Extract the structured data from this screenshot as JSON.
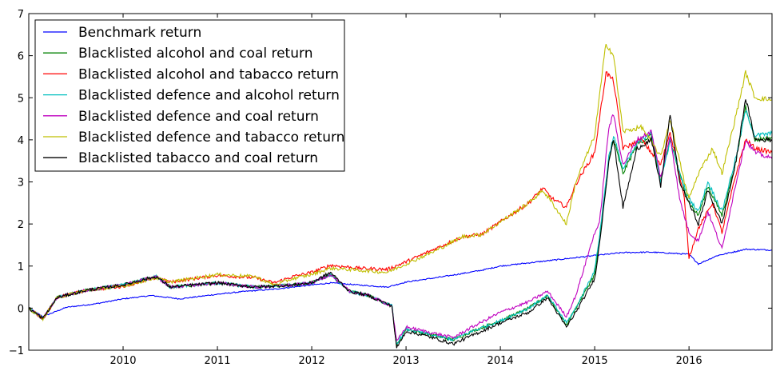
{
  "chart_data": {
    "type": "line",
    "title": "",
    "xlabel": "",
    "ylabel": "",
    "xlim": [
      2009.0,
      2016.88
    ],
    "ylim": [
      -1,
      7
    ],
    "xticks": [
      2010,
      2011,
      2012,
      2013,
      2014,
      2015,
      2016
    ],
    "yticks": [
      -1,
      0,
      1,
      2,
      3,
      4,
      5,
      6,
      7
    ],
    "grid": false,
    "legend_position": "top-left",
    "series": [
      {
        "name": "Benchmark return",
        "color": "#0000ff",
        "points": [
          [
            2009.0,
            0.0
          ],
          [
            2009.15,
            -0.2
          ],
          [
            2009.4,
            0.02
          ],
          [
            2009.7,
            0.1
          ],
          [
            2010.0,
            0.22
          ],
          [
            2010.3,
            0.3
          ],
          [
            2010.6,
            0.22
          ],
          [
            2011.0,
            0.33
          ],
          [
            2011.3,
            0.4
          ],
          [
            2011.6,
            0.45
          ],
          [
            2012.0,
            0.55
          ],
          [
            2012.2,
            0.6
          ],
          [
            2012.5,
            0.55
          ],
          [
            2012.8,
            0.5
          ],
          [
            2013.0,
            0.62
          ],
          [
            2013.4,
            0.75
          ],
          [
            2013.8,
            0.9
          ],
          [
            2014.0,
            1.0
          ],
          [
            2014.4,
            1.1
          ],
          [
            2014.8,
            1.2
          ],
          [
            2015.0,
            1.25
          ],
          [
            2015.3,
            1.32
          ],
          [
            2015.6,
            1.33
          ],
          [
            2015.85,
            1.3
          ],
          [
            2016.0,
            1.28
          ],
          [
            2016.1,
            1.05
          ],
          [
            2016.3,
            1.25
          ],
          [
            2016.6,
            1.4
          ],
          [
            2016.88,
            1.38
          ]
        ]
      },
      {
        "name": "Blacklisted alcohol and coal return",
        "color": "#008000",
        "points": [
          [
            2009.0,
            0.0
          ],
          [
            2009.15,
            -0.25
          ],
          [
            2009.3,
            0.25
          ],
          [
            2009.6,
            0.42
          ],
          [
            2010.0,
            0.55
          ],
          [
            2010.35,
            0.75
          ],
          [
            2010.5,
            0.5
          ],
          [
            2011.0,
            0.6
          ],
          [
            2011.4,
            0.5
          ],
          [
            2011.8,
            0.55
          ],
          [
            2012.0,
            0.6
          ],
          [
            2012.2,
            0.8
          ],
          [
            2012.4,
            0.4
          ],
          [
            2012.6,
            0.3
          ],
          [
            2012.85,
            0.05
          ],
          [
            2012.9,
            -0.9
          ],
          [
            2013.0,
            -0.5
          ],
          [
            2013.2,
            -0.6
          ],
          [
            2013.5,
            -0.75
          ],
          [
            2013.7,
            -0.55
          ],
          [
            2014.0,
            -0.3
          ],
          [
            2014.3,
            0.0
          ],
          [
            2014.5,
            0.3
          ],
          [
            2014.7,
            -0.4
          ],
          [
            2014.8,
            0.0
          ],
          [
            2015.0,
            0.8
          ],
          [
            2015.05,
            1.6
          ],
          [
            2015.15,
            3.5
          ],
          [
            2015.2,
            4.0
          ],
          [
            2015.3,
            3.2
          ],
          [
            2015.45,
            3.9
          ],
          [
            2015.6,
            4.1
          ],
          [
            2015.7,
            3.0
          ],
          [
            2015.8,
            4.0
          ],
          [
            2015.9,
            3.2
          ],
          [
            2016.0,
            2.5
          ],
          [
            2016.1,
            2.2
          ],
          [
            2016.2,
            2.9
          ],
          [
            2016.35,
            2.2
          ],
          [
            2016.5,
            3.5
          ],
          [
            2016.6,
            4.8
          ],
          [
            2016.7,
            4.0
          ],
          [
            2016.88,
            4.05
          ]
        ]
      },
      {
        "name": "Blacklisted alcohol and tabacco return",
        "color": "#ff0000",
        "points": [
          [
            2009.0,
            0.0
          ],
          [
            2009.15,
            -0.25
          ],
          [
            2009.3,
            0.25
          ],
          [
            2009.6,
            0.42
          ],
          [
            2010.0,
            0.52
          ],
          [
            2010.35,
            0.72
          ],
          [
            2010.5,
            0.62
          ],
          [
            2011.0,
            0.78
          ],
          [
            2011.4,
            0.72
          ],
          [
            2011.6,
            0.6
          ],
          [
            2011.8,
            0.75
          ],
          [
            2012.0,
            0.85
          ],
          [
            2012.2,
            1.02
          ],
          [
            2012.5,
            0.95
          ],
          [
            2012.8,
            0.92
          ],
          [
            2013.0,
            1.1
          ],
          [
            2013.3,
            1.4
          ],
          [
            2013.6,
            1.7
          ],
          [
            2013.8,
            1.75
          ],
          [
            2014.0,
            2.05
          ],
          [
            2014.3,
            2.5
          ],
          [
            2014.45,
            2.85
          ],
          [
            2014.55,
            2.6
          ],
          [
            2014.7,
            2.4
          ],
          [
            2014.8,
            2.95
          ],
          [
            2015.0,
            3.7
          ],
          [
            2015.12,
            5.6
          ],
          [
            2015.2,
            5.4
          ],
          [
            2015.3,
            3.8
          ],
          [
            2015.5,
            4.0
          ],
          [
            2015.7,
            3.4
          ],
          [
            2015.8,
            4.2
          ],
          [
            2015.95,
            2.6
          ],
          [
            2016.0,
            1.2
          ],
          [
            2016.1,
            1.9
          ],
          [
            2016.25,
            2.5
          ],
          [
            2016.35,
            1.8
          ],
          [
            2016.5,
            3.2
          ],
          [
            2016.6,
            4.0
          ],
          [
            2016.7,
            3.8
          ],
          [
            2016.88,
            3.7
          ]
        ]
      },
      {
        "name": "Blacklisted defence and alcohol return",
        "color": "#00bfbf",
        "points": [
          [
            2009.0,
            0.0
          ],
          [
            2009.15,
            -0.25
          ],
          [
            2009.3,
            0.25
          ],
          [
            2009.6,
            0.42
          ],
          [
            2010.0,
            0.55
          ],
          [
            2010.35,
            0.75
          ],
          [
            2010.5,
            0.5
          ],
          [
            2011.0,
            0.6
          ],
          [
            2011.4,
            0.5
          ],
          [
            2011.8,
            0.55
          ],
          [
            2012.0,
            0.6
          ],
          [
            2012.2,
            0.8
          ],
          [
            2012.4,
            0.4
          ],
          [
            2012.6,
            0.3
          ],
          [
            2012.85,
            0.05
          ],
          [
            2012.9,
            -0.85
          ],
          [
            2013.0,
            -0.5
          ],
          [
            2013.2,
            -0.6
          ],
          [
            2013.5,
            -0.75
          ],
          [
            2013.7,
            -0.55
          ],
          [
            2014.0,
            -0.3
          ],
          [
            2014.3,
            0.0
          ],
          [
            2014.5,
            0.3
          ],
          [
            2014.7,
            -0.35
          ],
          [
            2014.8,
            0.0
          ],
          [
            2015.0,
            0.9
          ],
          [
            2015.05,
            1.7
          ],
          [
            2015.15,
            3.6
          ],
          [
            2015.2,
            4.1
          ],
          [
            2015.3,
            3.3
          ],
          [
            2015.45,
            3.9
          ],
          [
            2015.6,
            4.2
          ],
          [
            2015.7,
            3.0
          ],
          [
            2015.8,
            4.0
          ],
          [
            2015.9,
            3.2
          ],
          [
            2016.0,
            2.6
          ],
          [
            2016.1,
            2.3
          ],
          [
            2016.2,
            3.0
          ],
          [
            2016.35,
            2.3
          ],
          [
            2016.5,
            3.6
          ],
          [
            2016.6,
            4.7
          ],
          [
            2016.7,
            4.1
          ],
          [
            2016.88,
            4.15
          ]
        ]
      },
      {
        "name": "Blacklisted defence and coal return",
        "color": "#bf00bf",
        "points": [
          [
            2009.0,
            0.0
          ],
          [
            2009.15,
            -0.25
          ],
          [
            2009.3,
            0.25
          ],
          [
            2009.6,
            0.42
          ],
          [
            2010.0,
            0.55
          ],
          [
            2010.35,
            0.75
          ],
          [
            2010.5,
            0.5
          ],
          [
            2011.0,
            0.6
          ],
          [
            2011.4,
            0.5
          ],
          [
            2011.8,
            0.55
          ],
          [
            2012.0,
            0.6
          ],
          [
            2012.2,
            0.8
          ],
          [
            2012.4,
            0.4
          ],
          [
            2012.6,
            0.3
          ],
          [
            2012.85,
            0.05
          ],
          [
            2012.9,
            -0.8
          ],
          [
            2013.0,
            -0.45
          ],
          [
            2013.2,
            -0.55
          ],
          [
            2013.5,
            -0.7
          ],
          [
            2013.7,
            -0.45
          ],
          [
            2014.0,
            -0.1
          ],
          [
            2014.3,
            0.15
          ],
          [
            2014.5,
            0.4
          ],
          [
            2014.7,
            -0.2
          ],
          [
            2014.8,
            0.3
          ],
          [
            2015.0,
            1.8
          ],
          [
            2015.05,
            2.0
          ],
          [
            2015.15,
            4.3
          ],
          [
            2015.2,
            4.6
          ],
          [
            2015.3,
            3.4
          ],
          [
            2015.45,
            4.0
          ],
          [
            2015.6,
            4.2
          ],
          [
            2015.7,
            3.1
          ],
          [
            2015.8,
            4.1
          ],
          [
            2015.9,
            2.6
          ],
          [
            2016.0,
            1.8
          ],
          [
            2016.1,
            1.6
          ],
          [
            2016.2,
            2.3
          ],
          [
            2016.35,
            1.4
          ],
          [
            2016.5,
            3.0
          ],
          [
            2016.6,
            4.0
          ],
          [
            2016.7,
            3.7
          ],
          [
            2016.88,
            3.55
          ]
        ]
      },
      {
        "name": "Blacklisted defence and tabacco return",
        "color": "#bfbf00",
        "points": [
          [
            2009.0,
            0.0
          ],
          [
            2009.15,
            -0.25
          ],
          [
            2009.3,
            0.25
          ],
          [
            2009.6,
            0.42
          ],
          [
            2010.0,
            0.52
          ],
          [
            2010.35,
            0.72
          ],
          [
            2010.5,
            0.62
          ],
          [
            2011.0,
            0.8
          ],
          [
            2011.4,
            0.75
          ],
          [
            2011.6,
            0.55
          ],
          [
            2011.8,
            0.7
          ],
          [
            2012.0,
            0.8
          ],
          [
            2012.2,
            0.95
          ],
          [
            2012.5,
            0.9
          ],
          [
            2012.8,
            0.85
          ],
          [
            2013.0,
            1.05
          ],
          [
            2013.3,
            1.35
          ],
          [
            2013.6,
            1.7
          ],
          [
            2013.8,
            1.75
          ],
          [
            2014.0,
            2.05
          ],
          [
            2014.3,
            2.5
          ],
          [
            2014.45,
            2.8
          ],
          [
            2014.55,
            2.5
          ],
          [
            2014.7,
            2.0
          ],
          [
            2014.8,
            3.0
          ],
          [
            2015.0,
            4.1
          ],
          [
            2015.12,
            6.3
          ],
          [
            2015.2,
            6.0
          ],
          [
            2015.3,
            4.2
          ],
          [
            2015.5,
            4.3
          ],
          [
            2015.7,
            3.6
          ],
          [
            2015.8,
            4.5
          ],
          [
            2015.95,
            3.0
          ],
          [
            2016.0,
            2.6
          ],
          [
            2016.1,
            3.2
          ],
          [
            2016.25,
            3.8
          ],
          [
            2016.35,
            3.2
          ],
          [
            2016.5,
            4.6
          ],
          [
            2016.6,
            5.6
          ],
          [
            2016.7,
            5.0
          ],
          [
            2016.88,
            4.95
          ]
        ]
      },
      {
        "name": "Blacklisted tabacco and coal return",
        "color": "#000000",
        "points": [
          [
            2009.0,
            0.0
          ],
          [
            2009.15,
            -0.25
          ],
          [
            2009.3,
            0.25
          ],
          [
            2009.6,
            0.42
          ],
          [
            2010.0,
            0.55
          ],
          [
            2010.35,
            0.75
          ],
          [
            2010.5,
            0.5
          ],
          [
            2011.0,
            0.6
          ],
          [
            2011.4,
            0.5
          ],
          [
            2011.8,
            0.55
          ],
          [
            2012.0,
            0.6
          ],
          [
            2012.2,
            0.85
          ],
          [
            2012.4,
            0.4
          ],
          [
            2012.6,
            0.3
          ],
          [
            2012.85,
            0.05
          ],
          [
            2012.9,
            -0.95
          ],
          [
            2013.0,
            -0.55
          ],
          [
            2013.2,
            -0.65
          ],
          [
            2013.5,
            -0.85
          ],
          [
            2013.7,
            -0.65
          ],
          [
            2014.0,
            -0.35
          ],
          [
            2014.3,
            -0.1
          ],
          [
            2014.5,
            0.25
          ],
          [
            2014.7,
            -0.45
          ],
          [
            2014.8,
            -0.1
          ],
          [
            2015.0,
            0.7
          ],
          [
            2015.05,
            1.5
          ],
          [
            2015.15,
            3.5
          ],
          [
            2015.2,
            4.0
          ],
          [
            2015.3,
            2.4
          ],
          [
            2015.45,
            3.8
          ],
          [
            2015.6,
            4.0
          ],
          [
            2015.7,
            2.9
          ],
          [
            2015.8,
            4.6
          ],
          [
            2015.9,
            3.0
          ],
          [
            2016.0,
            2.5
          ],
          [
            2016.1,
            2.0
          ],
          [
            2016.2,
            2.8
          ],
          [
            2016.35,
            2.0
          ],
          [
            2016.5,
            3.5
          ],
          [
            2016.6,
            5.0
          ],
          [
            2016.7,
            4.0
          ],
          [
            2016.88,
            4.0
          ]
        ]
      }
    ]
  }
}
